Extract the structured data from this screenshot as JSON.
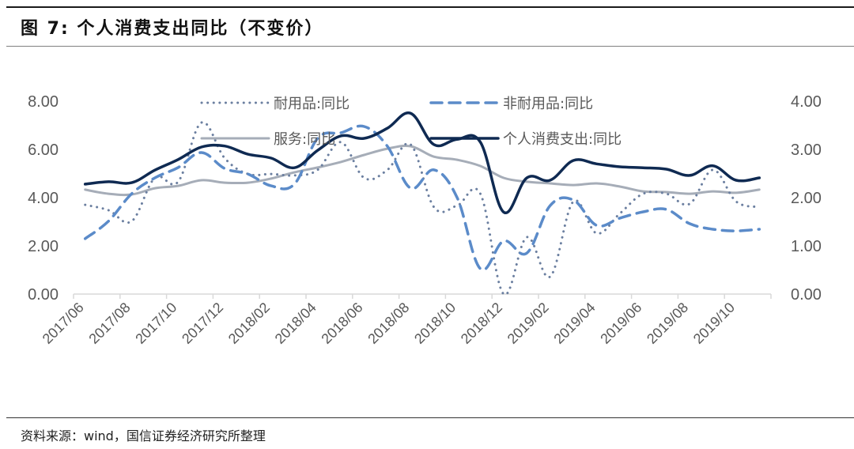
{
  "header": {
    "title": "图 7:  个人消费支出同比（不变价）"
  },
  "footer": {
    "source": "资料来源：wind，国信证券经济研究所整理"
  },
  "colors": {
    "durables": "#6b7fa0",
    "nondurables": "#5b8bc9",
    "services": "#a6adb8",
    "total": "#0f2a52",
    "axis": "#d9d9d9",
    "text": "#595959"
  },
  "chart_data": {
    "type": "line",
    "title": "个人消费支出同比（不变价）",
    "xlabel": "",
    "ylabel_left": "",
    "ylabel_right": "",
    "ylim_left": [
      0,
      8
    ],
    "ylim_right": [
      0,
      4
    ],
    "yticks_left": [
      "0.00",
      "2.00",
      "4.00",
      "6.00",
      "8.00"
    ],
    "yticks_right": [
      "0.00",
      "1.00",
      "2.00",
      "3.00",
      "4.00"
    ],
    "xtick_labels": [
      "2017/06",
      "2017/08",
      "2017/10",
      "2017/12",
      "2018/02",
      "2018/04",
      "2018/06",
      "2018/08",
      "2018/10",
      "2018/12",
      "2019/02",
      "2019/04",
      "2019/06",
      "2019/08",
      "2019/10"
    ],
    "x": [
      "2017/06",
      "2017/07",
      "2017/08",
      "2017/09",
      "2017/10",
      "2017/11",
      "2017/12",
      "2018/01",
      "2018/02",
      "2018/03",
      "2018/04",
      "2018/05",
      "2018/06",
      "2018/07",
      "2018/08",
      "2018/09",
      "2018/10",
      "2018/11",
      "2018/12",
      "2019/01",
      "2019/02",
      "2019/03",
      "2019/04",
      "2019/05",
      "2019/06",
      "2019/07",
      "2019/08",
      "2019/09",
      "2019/10",
      "2019/11"
    ],
    "grid": false,
    "legend_position": "top",
    "series": [
      {
        "name": "耐用品:同比",
        "axis": "left",
        "style": "dotted",
        "values": [
          3.7,
          3.48,
          3.02,
          4.82,
          4.66,
          7.11,
          5.64,
          4.98,
          4.98,
          4.92,
          5.15,
          6.3,
          4.82,
          5.15,
          6.2,
          3.61,
          3.67,
          4.16,
          0.0,
          2.36,
          0.72,
          3.84,
          2.52,
          3.34,
          4.16,
          4.16,
          3.74,
          5.15,
          3.84,
          3.61
        ]
      },
      {
        "name": "非耐用品:同比",
        "axis": "left",
        "style": "dashed",
        "values": [
          2.3,
          3.02,
          4.16,
          4.82,
          5.25,
          5.87,
          5.21,
          4.98,
          4.49,
          4.56,
          6.46,
          6.69,
          6.95,
          6.13,
          4.39,
          5.15,
          4.0,
          1.05,
          2.2,
          1.7,
          3.67,
          3.9,
          2.85,
          3.15,
          3.41,
          3.51,
          2.92,
          2.69,
          2.62,
          2.69
        ]
      },
      {
        "name": "服务:同比",
        "axis": "left",
        "style": "solid",
        "values": [
          4.33,
          4.16,
          4.13,
          4.39,
          4.49,
          4.72,
          4.62,
          4.62,
          4.79,
          5.05,
          5.25,
          5.48,
          5.77,
          6.03,
          6.13,
          5.7,
          5.57,
          5.31,
          4.82,
          4.66,
          4.59,
          4.52,
          4.59,
          4.46,
          4.26,
          4.23,
          4.16,
          4.26,
          4.2,
          4.33
        ]
      },
      {
        "name": "个人消费支出:同比",
        "axis": "right",
        "style": "solid-bold",
        "values": [
          2.28,
          2.33,
          2.31,
          2.57,
          2.79,
          3.05,
          3.07,
          2.9,
          2.82,
          2.62,
          2.98,
          3.28,
          3.23,
          3.44,
          3.75,
          3.1,
          3.21,
          3.15,
          1.7,
          2.41,
          2.36,
          2.77,
          2.7,
          2.64,
          2.62,
          2.59,
          2.46,
          2.66,
          2.36,
          2.41
        ]
      }
    ]
  }
}
